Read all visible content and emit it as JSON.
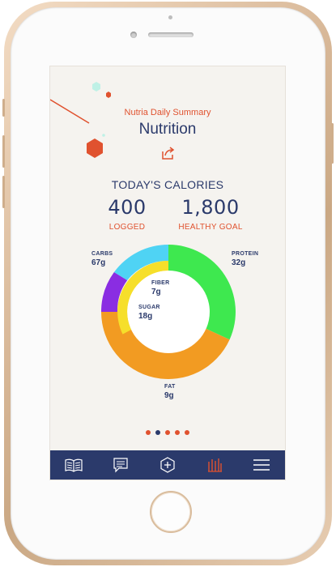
{
  "header": {
    "subtitle": "Nutria Daily Summary",
    "title": "Nutrition"
  },
  "calories": {
    "section_title": "TODAY'S CALORIES",
    "logged_value": "400",
    "logged_label": "LOGGED",
    "goal_value": "1,800",
    "goal_label": "HEALTHY GOAL"
  },
  "chart_data": {
    "type": "pie",
    "outer_ring": [
      {
        "name": "PROTEIN",
        "label": "32g",
        "color": "#3ee84f"
      },
      {
        "name": "FAT",
        "label": "9g",
        "color": "#f29b22"
      },
      {
        "name": "CARBS",
        "label": "67g",
        "color": "#8a2de2"
      },
      {
        "name": "CARBS",
        "label": "67g",
        "color": "#4fd3f4"
      }
    ],
    "inner_ring": [
      {
        "name": "FIBER",
        "label": "7g"
      },
      {
        "name": "SUGAR",
        "label": "18g",
        "color": "#f6df2a"
      }
    ],
    "labels": {
      "protein": {
        "name": "PROTEIN",
        "value": "32g"
      },
      "fat": {
        "name": "FAT",
        "value": "9g"
      },
      "carbs": {
        "name": "CARBS",
        "value": "67g"
      },
      "fiber": {
        "name": "FIBER",
        "value": "7g"
      },
      "sugar": {
        "name": "SUGAR",
        "value": "18g"
      }
    }
  },
  "pagination": {
    "total": 5,
    "active_index": 1,
    "active_color": "#2b3a6b",
    "inactive_color": "#e0522f"
  },
  "tabbar": {
    "items": [
      {
        "icon": "book-icon"
      },
      {
        "icon": "chat-icon"
      },
      {
        "icon": "add-hexagon-icon"
      },
      {
        "icon": "nutrition-chart-icon",
        "active": true
      },
      {
        "icon": "menu-icon"
      }
    ],
    "bg_color": "#2b3a6b",
    "active_color": "#e0522f"
  }
}
